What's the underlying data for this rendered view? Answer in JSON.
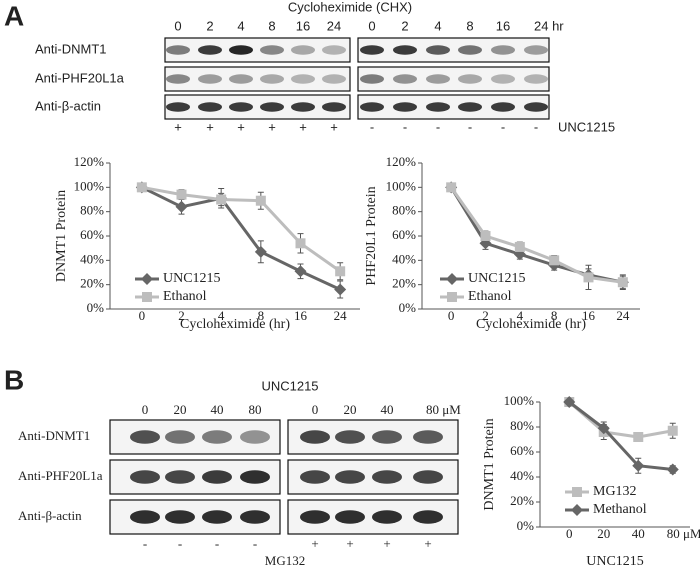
{
  "panel_a": {
    "label": "A",
    "header": "Cycloheximide (CHX)",
    "lanes_left": [
      "0",
      "2",
      "4",
      "8",
      "16",
      "24"
    ],
    "lanes_right": [
      "0",
      "2",
      "4",
      "8",
      "16",
      "24 hr"
    ],
    "rows": [
      "Anti-DNMT1",
      "Anti-PHF20L1a",
      "Anti-β-actin"
    ],
    "signs": [
      "+",
      "+",
      "+",
      "+",
      "+",
      "+",
      "-",
      "-",
      "-",
      "-",
      "-",
      "-"
    ],
    "signs_label": "UNC1215"
  },
  "panel_b": {
    "label": "B",
    "header": "UNC1215",
    "lanes_left": [
      "0",
      "20",
      "40",
      "80"
    ],
    "lanes_right": [
      "0",
      "20",
      "40",
      "80 μM"
    ],
    "rows": [
      "Anti-DNMT1",
      "Anti-PHF20L1a",
      "Anti-β-actin"
    ],
    "signs": [
      "-",
      "-",
      "-",
      "-",
      "+",
      "+",
      "+",
      "+"
    ],
    "signs_label": "MG132"
  },
  "chart_data": [
    {
      "type": "line",
      "x_label": "Cycloheximide (hr)",
      "y_label": "DNMT1 Protein",
      "categories": [
        "0",
        "2",
        "4",
        "8",
        "16",
        "24"
      ],
      "series": [
        {
          "name": "UNC1215",
          "color": "#666666",
          "marker": "diamond",
          "values": [
            100,
            84,
            91,
            47,
            31,
            16
          ],
          "errors": [
            0,
            6,
            8,
            9,
            6,
            7
          ]
        },
        {
          "name": "Ethanol",
          "color": "#bdbdbd",
          "marker": "square",
          "values": [
            100,
            94,
            90,
            89,
            54,
            31
          ],
          "errors": [
            0,
            4,
            5,
            7,
            8,
            7
          ]
        }
      ],
      "ylim": [
        0,
        120
      ],
      "yticks": [
        {
          "value": 0,
          "label": "0%"
        },
        {
          "value": 20,
          "label": "20%"
        },
        {
          "value": 40,
          "label": "40%"
        },
        {
          "value": 60,
          "label": "60%"
        },
        {
          "value": 80,
          "label": "80%"
        },
        {
          "value": 100,
          "label": "100%"
        },
        {
          "value": 120,
          "label": "120%"
        }
      ],
      "grid": false,
      "legend": "lower-left"
    },
    {
      "type": "line",
      "x_label": "Cycloheximide (hr)",
      "y_label": "PHF20L1 Protein",
      "categories": [
        "0",
        "2",
        "4",
        "8",
        "16",
        "24"
      ],
      "series": [
        {
          "name": "UNC1215",
          "color": "#666666",
          "marker": "diamond",
          "values": [
            100,
            54,
            45,
            36,
            28,
            22
          ],
          "errors": [
            0,
            5,
            4,
            4,
            5,
            5
          ]
        },
        {
          "name": "Ethanol",
          "color": "#bdbdbd",
          "marker": "square",
          "values": [
            100,
            60,
            51,
            40,
            26,
            22
          ],
          "errors": [
            0,
            4,
            4,
            4,
            10,
            6
          ]
        }
      ],
      "ylim": [
        0,
        120
      ],
      "yticks": [
        {
          "value": 0,
          "label": "0%"
        },
        {
          "value": 20,
          "label": "20%"
        },
        {
          "value": 40,
          "label": "40%"
        },
        {
          "value": 60,
          "label": "60%"
        },
        {
          "value": 80,
          "label": "80%"
        },
        {
          "value": 100,
          "label": "100%"
        },
        {
          "value": 120,
          "label": "120%"
        }
      ],
      "grid": false,
      "legend": "lower-left"
    },
    {
      "type": "line",
      "x_label": "UNC1215",
      "y_label": "DNMT1 Protein",
      "categories": [
        "0",
        "20",
        "40",
        "80 μM"
      ],
      "series": [
        {
          "name": "MG132",
          "color": "#bdbdbd",
          "marker": "square",
          "values": [
            100,
            76,
            72,
            77
          ],
          "errors": [
            0,
            6,
            2,
            6
          ]
        },
        {
          "name": "Methanol",
          "color": "#666666",
          "marker": "diamond",
          "values": [
            100,
            79,
            49,
            46
          ],
          "errors": [
            0,
            5,
            6,
            3
          ]
        }
      ],
      "ylim": [
        0,
        100
      ],
      "yticks": [
        {
          "value": 0,
          "label": "0%"
        },
        {
          "value": 20,
          "label": "20%"
        },
        {
          "value": 40,
          "label": "40%"
        },
        {
          "value": 60,
          "label": "60%"
        },
        {
          "value": 80,
          "label": "80%"
        },
        {
          "value": 100,
          "label": "100%"
        }
      ],
      "grid": false,
      "legend": "lower-left"
    }
  ]
}
